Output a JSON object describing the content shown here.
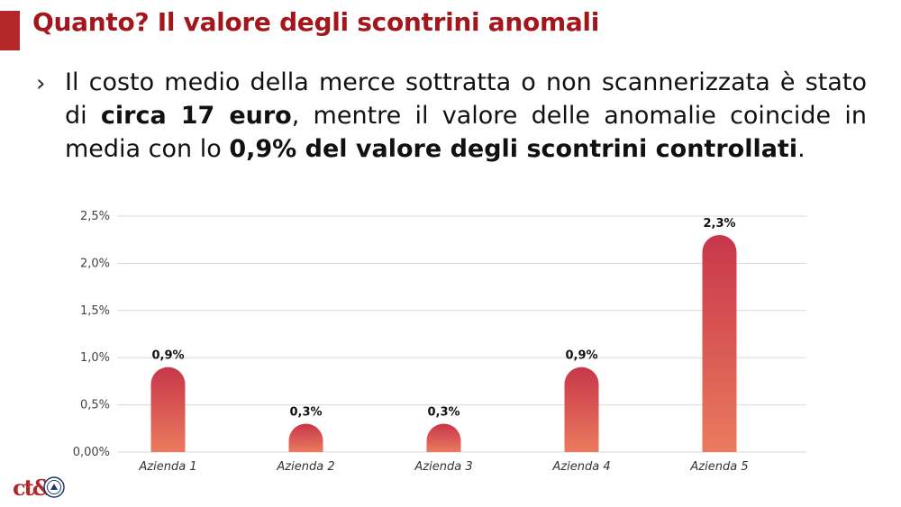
{
  "slide": {
    "title": "Quanto?  Il valore degli scontrini anomali",
    "bullet": {
      "mark": "›",
      "parts": [
        {
          "text": "Il costo medio della merce sottratta o non scannerizzata è stato di ",
          "bold": false
        },
        {
          "text": "circa 17 euro",
          "bold": true
        },
        {
          "text": ", mentre il valore delle anomalie coincide in media con lo ",
          "bold": false
        },
        {
          "text": "0,9% del valore degli scontrini controllati",
          "bold": true
        },
        {
          "text": ".",
          "bold": false
        }
      ]
    },
    "logo_text": "ct&"
  },
  "colors": {
    "title": "#a3171c",
    "accent_bar": "#b3272b",
    "bar_top": "#c8364a",
    "bar_bottom": "#ea7b5e",
    "grid": "#d9d9d9"
  },
  "chart_data": {
    "type": "bar",
    "categories": [
      "Azienda 1",
      "Azienda 2",
      "Azienda 3",
      "Azienda 4",
      "Azienda 5"
    ],
    "values": [
      0.9,
      0.3,
      0.3,
      0.9,
      2.3
    ],
    "data_labels": [
      "0,9%",
      "0,3%",
      "0,3%",
      "0,9%",
      "2,3%"
    ],
    "y_ticks": [
      0,
      0.5,
      1.0,
      1.5,
      2.0,
      2.5
    ],
    "y_tick_labels": [
      "0,00%",
      "0,5%",
      "1,0%",
      "1,5%",
      "2,0%",
      "2,5%"
    ],
    "ylim": [
      0,
      2.5
    ],
    "grid": true,
    "legend": "none"
  }
}
